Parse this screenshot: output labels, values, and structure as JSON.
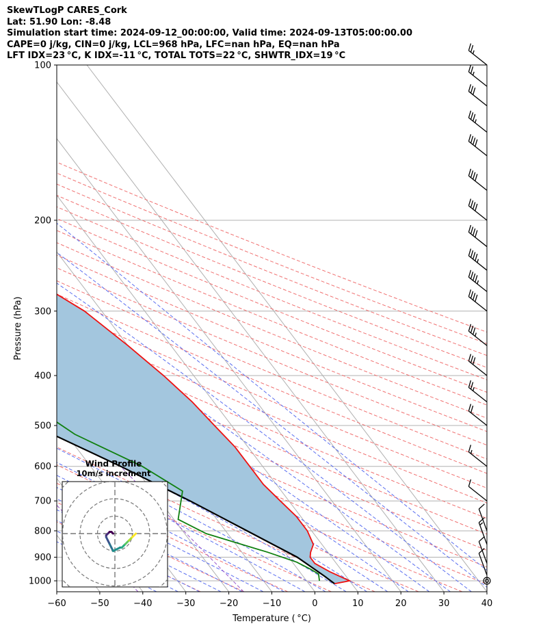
{
  "header": {
    "title": "SkewTLogP CARES_Cork",
    "location": "Lat: 51.90   Lon: -8.48",
    "times": "Simulation start time: 2024-09-12_00:00:00, Valid time: 2024-09-13T05:00:00.00",
    "params": "CAPE=0 j/kg, CIN=0 j/kg, LCL=968 hPa, LFC=nan hPa, EQ=nan hPa",
    "indices": "LFT IDX=23 °C, K IDX=-11 °C, TOTAL TOTS=22 °C, SHWTR_IDX=19 °C"
  },
  "colors": {
    "temperature": "#ee1111",
    "dewpoint": "#108010",
    "parcel": "#000000",
    "shading": "#a3c6de",
    "dry_adiabats": "#f07070",
    "moist_adiabats": "#5a6ef0",
    "mixing_ratio": "#9955cc",
    "isotherms": "#b0b0b0",
    "isobars": "#b0b0b0"
  },
  "chart_data": [
    {
      "type": "line",
      "subtype": "skew-t log-p",
      "xlabel": "Temperature ( °C)",
      "ylabel": "Pressure (hPa)",
      "xlim": [
        -60,
        40
      ],
      "ylim": [
        1050,
        100
      ],
      "yscale": "log",
      "x_ticks": [
        -60,
        -50,
        -40,
        -30,
        -20,
        -10,
        0,
        10,
        20,
        30,
        40
      ],
      "x_tick_labels": [
        "−60",
        "−50",
        "−40",
        "−30",
        "−20",
        "−10",
        "0",
        "10",
        "20",
        "30",
        "40"
      ],
      "y_ticks": [
        100,
        200,
        300,
        400,
        500,
        600,
        700,
        800,
        900,
        1000
      ],
      "y_tick_labels": [
        "100",
        "200",
        "300",
        "400",
        "500",
        "600",
        "700",
        "800",
        "900",
        "1000"
      ],
      "grid": true,
      "series": [
        {
          "role": "temperature",
          "points": [
            [
              6,
              1013
            ],
            [
              10,
              1000
            ],
            [
              7,
              960
            ],
            [
              5,
              925
            ],
            [
              5,
              900
            ],
            [
              6,
              880
            ],
            [
              8,
              850
            ],
            [
              9,
              800
            ],
            [
              9,
              750
            ],
            [
              8,
              700
            ],
            [
              7,
              650
            ],
            [
              7,
              600
            ],
            [
              7,
              550
            ],
            [
              6,
              500
            ],
            [
              5,
              450
            ],
            [
              3,
              400
            ],
            [
              0,
              350
            ],
            [
              -4,
              300
            ],
            [
              -8,
              275
            ],
            [
              -11,
              250
            ],
            [
              -15,
              225
            ],
            [
              -17,
              200
            ],
            [
              -17,
              190
            ],
            [
              -17,
              170
            ],
            [
              -18,
              150
            ],
            [
              -21,
              130
            ],
            [
              -23,
              110
            ],
            [
              -24,
              100
            ]
          ]
        },
        {
          "role": "dewpoint",
          "points": [
            [
              3,
              1000
            ],
            [
              4,
              970
            ],
            [
              3,
              950
            ],
            [
              1,
              920
            ],
            [
              -4,
              880
            ],
            [
              -15,
              810
            ],
            [
              -19,
              760
            ],
            [
              -13,
              670
            ],
            [
              -18,
              600
            ],
            [
              -28,
              520
            ],
            [
              -31,
              480
            ],
            [
              -28,
              440
            ],
            [
              -42,
              390
            ],
            [
              -47,
              350
            ],
            [
              -53,
              300
            ],
            [
              -57,
              270
            ],
            [
              -57,
              250
            ],
            [
              -63,
              220
            ],
            [
              -68,
              200
            ],
            [
              -72,
              180
            ],
            [
              -74,
              170
            ],
            [
              -79,
              150
            ],
            [
              -84,
              140
            ],
            [
              -83,
              130
            ],
            [
              -82,
              120
            ],
            [
              -82,
              110
            ],
            [
              -81,
              100
            ]
          ]
        },
        {
          "role": "parcel",
          "points": [
            [
              6,
              1013
            ],
            [
              5,
              980
            ],
            [
              2,
              900
            ],
            [
              -5,
              800
            ],
            [
              -13,
              700
            ],
            [
              -23,
              600
            ],
            [
              -36,
              500
            ],
            [
              -52,
              400
            ],
            [
              -72,
              300
            ],
            [
              -85,
              250
            ],
            [
              -100,
              200
            ],
            [
              -121,
              150
            ],
            [
              -137,
              120
            ],
            [
              -151,
              100
            ]
          ]
        }
      ],
      "wind_barbs": [
        {
          "p": 1000,
          "knots": 5,
          "calm": true
        },
        {
          "p": 975,
          "knots": 10
        },
        {
          "p": 925,
          "knots": 10
        },
        {
          "p": 850,
          "knots": 15
        },
        {
          "p": 800,
          "knots": 10
        },
        {
          "p": 700,
          "knots": 10
        },
        {
          "p": 600,
          "knots": 15
        },
        {
          "p": 500,
          "knots": 20
        },
        {
          "p": 450,
          "knots": 25
        },
        {
          "p": 400,
          "knots": 30
        },
        {
          "p": 350,
          "knots": 35
        },
        {
          "p": 300,
          "knots": 40
        },
        {
          "p": 275,
          "knots": 45
        },
        {
          "p": 250,
          "knots": 45
        },
        {
          "p": 225,
          "knots": 40
        },
        {
          "p": 200,
          "knots": 40
        },
        {
          "p": 175,
          "knots": 40
        },
        {
          "p": 150,
          "knots": 40
        },
        {
          "p": 135,
          "knots": 35
        },
        {
          "p": 120,
          "knots": 30
        },
        {
          "p": 110,
          "knots": 25
        },
        {
          "p": 100,
          "knots": 25
        }
      ]
    },
    {
      "type": "line",
      "subtype": "hodograph",
      "title": "Wind Profile",
      "subtitle": "10m/s increment",
      "ring_step": 10,
      "path": [
        [
          1,
          -9
        ],
        [
          3,
          -8
        ],
        [
          4,
          -8
        ],
        [
          5,
          -7
        ],
        [
          6,
          -6
        ],
        [
          7,
          -5
        ],
        [
          8,
          -4
        ],
        [
          9,
          -3
        ],
        [
          10,
          -2
        ],
        [
          11,
          -1
        ],
        [
          12,
          0
        ]
      ],
      "upper_path": [
        [
          -1,
          -10
        ],
        [
          -2,
          -8
        ],
        [
          -3,
          -6
        ],
        [
          -4,
          -4
        ],
        [
          -5,
          -2
        ],
        [
          -5,
          -1
        ],
        [
          -4,
          0
        ],
        [
          -3,
          1
        ],
        [
          -2,
          1
        ],
        [
          -1,
          0
        ]
      ]
    }
  ]
}
